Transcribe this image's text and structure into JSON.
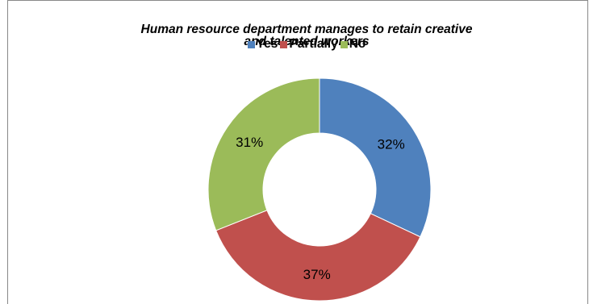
{
  "chart_data": {
    "type": "pie",
    "donut": true,
    "title": "Human resource department manages to retain creative\nand talented workers",
    "legend_placement": "top",
    "categories": [
      "Yes",
      "Partially",
      "No"
    ],
    "values": [
      32,
      37,
      31
    ],
    "data_labels": [
      "32%",
      "37%",
      "31%"
    ],
    "colors": [
      "#4F81BD",
      "#C0504D",
      "#9BBB59"
    ]
  }
}
